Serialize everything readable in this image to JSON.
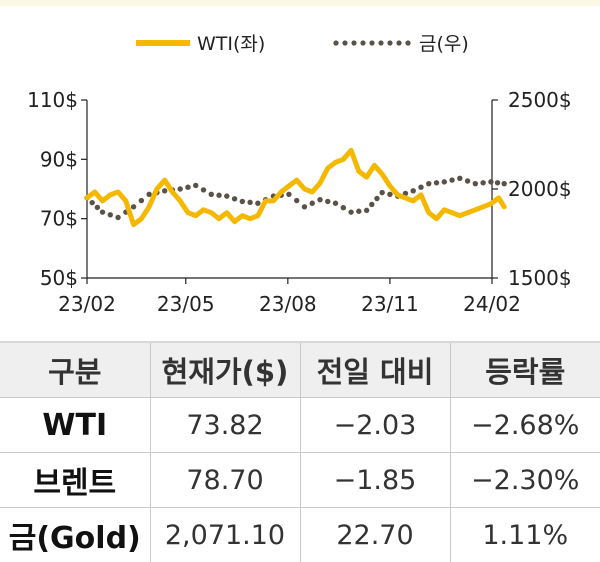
{
  "chart_data": {
    "type": "line",
    "x_ticks": [
      "23/02",
      "23/05",
      "23/08",
      "23/11",
      "24/02"
    ],
    "y_left_ticks": [
      "110$",
      "90$",
      "70$",
      "50$"
    ],
    "y_right_ticks": [
      "2500$",
      "2000$",
      "1500$"
    ],
    "y_left_range": [
      50,
      110
    ],
    "y_right_range": [
      1500,
      2500
    ],
    "legend_position": "top-center",
    "series": [
      {
        "name": "WTI(좌)",
        "axis": "left",
        "style": "solid",
        "color": "#f5b800",
        "x": [
          "2023-02-01",
          "2023-02-08",
          "2023-02-15",
          "2023-02-22",
          "2023-03-01",
          "2023-03-08",
          "2023-03-15",
          "2023-03-22",
          "2023-03-29",
          "2023-04-05",
          "2023-04-12",
          "2023-04-19",
          "2023-04-26",
          "2023-05-03",
          "2023-05-10",
          "2023-05-17",
          "2023-05-24",
          "2023-05-31",
          "2023-06-07",
          "2023-06-14",
          "2023-06-21",
          "2023-06-28",
          "2023-07-05",
          "2023-07-12",
          "2023-07-19",
          "2023-07-26",
          "2023-08-02",
          "2023-08-09",
          "2023-08-16",
          "2023-08-23",
          "2023-08-30",
          "2023-09-06",
          "2023-09-13",
          "2023-09-20",
          "2023-09-27",
          "2023-10-04",
          "2023-10-11",
          "2023-10-18",
          "2023-10-25",
          "2023-11-01",
          "2023-11-08",
          "2023-11-15",
          "2023-11-22",
          "2023-11-29",
          "2023-12-06",
          "2023-12-13",
          "2023-12-20",
          "2023-12-27",
          "2024-01-03",
          "2024-01-10",
          "2024-01-17",
          "2024-01-24",
          "2024-01-31",
          "2024-02-07",
          "2024-02-12"
        ],
        "values": [
          77,
          79,
          76,
          78,
          79,
          76,
          68,
          70,
          74,
          80,
          83,
          79,
          76,
          72,
          71,
          73,
          72,
          70,
          72,
          69,
          71,
          70,
          71,
          76,
          76,
          79,
          81,
          83,
          80,
          79,
          82,
          87,
          89,
          90,
          93,
          86,
          84,
          88,
          85,
          81,
          78,
          77,
          76,
          78,
          72,
          70,
          73,
          72,
          71,
          72,
          73,
          74,
          75,
          77,
          74
        ]
      },
      {
        "name": "금(우)",
        "axis": "right",
        "style": "dotted",
        "color": "#5a5247",
        "x": [
          "2023-02-01",
          "2023-02-15",
          "2023-03-01",
          "2023-03-15",
          "2023-03-29",
          "2023-04-12",
          "2023-04-26",
          "2023-05-10",
          "2023-05-24",
          "2023-06-07",
          "2023-06-21",
          "2023-07-05",
          "2023-07-19",
          "2023-08-02",
          "2023-08-16",
          "2023-08-30",
          "2023-09-13",
          "2023-09-27",
          "2023-10-11",
          "2023-10-25",
          "2023-11-08",
          "2023-11-22",
          "2023-12-06",
          "2023-12-20",
          "2024-01-03",
          "2024-01-17",
          "2024-01-31",
          "2024-02-12"
        ],
        "values": [
          1950,
          1870,
          1840,
          1900,
          1970,
          1990,
          2000,
          2020,
          1970,
          1960,
          1930,
          1920,
          1960,
          1970,
          1900,
          1940,
          1920,
          1870,
          1880,
          1980,
          1960,
          1990,
          2030,
          2040,
          2060,
          2030,
          2040,
          2030
        ]
      }
    ]
  },
  "table": {
    "headers": [
      "구분",
      "현재가($)",
      "전일 대비",
      "등락률"
    ],
    "rows": [
      {
        "name": "WTI",
        "price": "73.82",
        "change": "−2.03",
        "rate": "−2.68%"
      },
      {
        "name": "브렌트",
        "price": "78.70",
        "change": "−1.85",
        "rate": "−2.30%"
      },
      {
        "name": "금(Gold)",
        "price": "2,071.10",
        "change": "22.70",
        "rate": "1.11%"
      }
    ]
  }
}
